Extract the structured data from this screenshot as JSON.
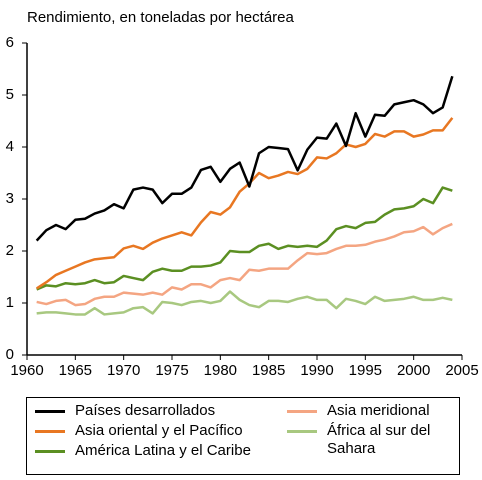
{
  "chart_data": {
    "type": "line",
    "title": "Rendimiento, en toneladas por hectárea",
    "x": [
      1961,
      1962,
      1963,
      1964,
      1965,
      1966,
      1967,
      1968,
      1969,
      1970,
      1971,
      1972,
      1973,
      1974,
      1975,
      1976,
      1977,
      1978,
      1979,
      1980,
      1981,
      1982,
      1983,
      1984,
      1985,
      1986,
      1987,
      1988,
      1989,
      1990,
      1991,
      1992,
      1993,
      1994,
      1995,
      1996,
      1997,
      1998,
      1999,
      2000,
      2001,
      2002,
      2003,
      2004
    ],
    "series": [
      {
        "name": "Países desarrollados",
        "color": "#000000",
        "values": [
          2.2,
          2.4,
          2.5,
          2.42,
          2.6,
          2.62,
          2.72,
          2.78,
          2.9,
          2.82,
          3.18,
          3.22,
          3.18,
          2.92,
          3.1,
          3.1,
          3.22,
          3.56,
          3.62,
          3.33,
          3.58,
          3.7,
          3.24,
          3.88,
          4.0,
          3.98,
          3.96,
          3.55,
          3.95,
          4.18,
          4.16,
          4.45,
          4.02,
          4.65,
          4.2,
          4.62,
          4.6,
          4.82,
          4.86,
          4.9,
          4.82,
          4.65,
          4.76,
          5.36
        ]
      },
      {
        "name": "Asia oriental y el Pacífico",
        "color": "#e87722",
        "values": [
          1.28,
          1.4,
          1.54,
          1.62,
          1.7,
          1.78,
          1.84,
          1.86,
          1.88,
          2.05,
          2.1,
          2.04,
          2.16,
          2.24,
          2.3,
          2.36,
          2.3,
          2.55,
          2.75,
          2.7,
          2.84,
          3.14,
          3.3,
          3.5,
          3.4,
          3.45,
          3.52,
          3.48,
          3.58,
          3.8,
          3.78,
          3.88,
          4.05,
          4.0,
          4.06,
          4.25,
          4.2,
          4.3,
          4.3,
          4.2,
          4.24,
          4.32,
          4.32,
          4.56
        ]
      },
      {
        "name": "América Latina y el Caribe",
        "color": "#5b8f22",
        "values": [
          1.26,
          1.34,
          1.32,
          1.38,
          1.36,
          1.38,
          1.44,
          1.38,
          1.4,
          1.52,
          1.48,
          1.44,
          1.6,
          1.66,
          1.62,
          1.62,
          1.7,
          1.7,
          1.72,
          1.78,
          2.0,
          1.98,
          1.98,
          2.1,
          2.14,
          2.04,
          2.1,
          2.08,
          2.1,
          2.08,
          2.2,
          2.42,
          2.48,
          2.44,
          2.54,
          2.56,
          2.7,
          2.8,
          2.82,
          2.86,
          3.0,
          2.92,
          3.22,
          3.16
        ]
      },
      {
        "name": "Asia meridional",
        "color": "#f4a582",
        "values": [
          1.02,
          0.98,
          1.04,
          1.06,
          0.96,
          0.98,
          1.08,
          1.12,
          1.12,
          1.2,
          1.18,
          1.16,
          1.2,
          1.16,
          1.3,
          1.26,
          1.36,
          1.36,
          1.3,
          1.44,
          1.48,
          1.44,
          1.64,
          1.62,
          1.66,
          1.66,
          1.66,
          1.82,
          1.96,
          1.94,
          1.96,
          2.04,
          2.1,
          2.1,
          2.12,
          2.18,
          2.22,
          2.28,
          2.36,
          2.38,
          2.46,
          2.32,
          2.44,
          2.52
        ]
      },
      {
        "name": "África al sur del Sahara",
        "color": "#a8c880",
        "values": [
          0.8,
          0.82,
          0.82,
          0.8,
          0.78,
          0.78,
          0.9,
          0.78,
          0.8,
          0.82,
          0.9,
          0.92,
          0.8,
          1.02,
          1.0,
          0.96,
          1.02,
          1.04,
          1.0,
          1.04,
          1.22,
          1.06,
          0.96,
          0.92,
          1.04,
          1.04,
          1.02,
          1.08,
          1.12,
          1.06,
          1.06,
          0.9,
          1.08,
          1.04,
          0.98,
          1.12,
          1.04,
          1.06,
          1.08,
          1.12,
          1.06,
          1.06,
          1.1,
          1.06
        ]
      }
    ],
    "xlim": [
      1960,
      2005
    ],
    "xticks": [
      1960,
      1965,
      1970,
      1975,
      1980,
      1985,
      1990,
      1995,
      2000,
      2005
    ],
    "ylim": [
      0,
      6
    ],
    "yticks": [
      0,
      1,
      2,
      3,
      4,
      5,
      6
    ]
  }
}
